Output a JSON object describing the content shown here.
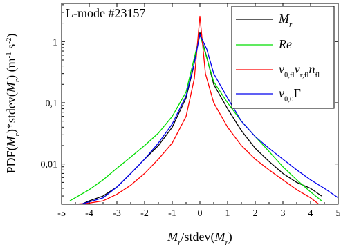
{
  "chart_data": {
    "type": "line",
    "annotation": "L-mode #23157",
    "xlabel": {
      "parts": [
        {
          "t": "M",
          "i": true
        },
        {
          "t": "r",
          "i": true,
          "sub": true
        },
        {
          "t": "/stdev(",
          "i": false
        },
        {
          "t": "M",
          "i": true
        },
        {
          "t": "r",
          "i": true,
          "sub": true
        },
        {
          "t": ")",
          "i": false
        }
      ]
    },
    "ylabel": {
      "parts": [
        {
          "t": "PDF(",
          "i": false
        },
        {
          "t": "M",
          "i": true
        },
        {
          "t": "r",
          "i": true,
          "sub": true
        },
        {
          "t": ")*stdev(",
          "i": false
        },
        {
          "t": "M",
          "i": true
        },
        {
          "t": "r",
          "i": true,
          "sub": true
        },
        {
          "t": ") (m",
          "i": false
        },
        {
          "t": "-1",
          "i": false,
          "sup": true
        },
        {
          "t": " s",
          "i": false
        },
        {
          "t": "-2",
          "i": false,
          "sup": true
        },
        {
          "t": ")",
          "i": false
        }
      ]
    },
    "xlim": [
      -5,
      5
    ],
    "ylim": [
      0.0022,
      4.2
    ],
    "yscale": "log",
    "xticks": [
      -5,
      -4,
      -3,
      -2,
      -1,
      0,
      1,
      2,
      3,
      4,
      5
    ],
    "xtick_labels": [
      "-5",
      "-4",
      "-3",
      "-2",
      "-1",
      "0",
      "1",
      "2",
      "3",
      "4",
      "5"
    ],
    "yticks": [
      0.01,
      0.1,
      1
    ],
    "ytick_labels": [
      "0,01",
      "0,1",
      "1"
    ],
    "legend_position": "top-right",
    "grid": false,
    "series": [
      {
        "name": "M_r",
        "legend": [
          {
            "t": "M",
            "i": true
          },
          {
            "t": "r",
            "i": true,
            "sub": true
          }
        ],
        "color": "#000000",
        "x": [
          -4.5,
          -4.0,
          -3.5,
          -3.0,
          -2.5,
          -2.0,
          -1.5,
          -1.0,
          -0.5,
          -0.25,
          0.0,
          0.25,
          0.5,
          1.0,
          1.5,
          2.0,
          2.5,
          3.0,
          3.5,
          4.0,
          4.4
        ],
        "y": [
          0.002,
          0.0025,
          0.003,
          0.0042,
          0.007,
          0.012,
          0.02,
          0.04,
          0.12,
          0.35,
          1.4,
          0.55,
          0.2,
          0.08,
          0.035,
          0.018,
          0.011,
          0.007,
          0.005,
          0.004,
          0.003
        ]
      },
      {
        "name": "Re",
        "legend": [
          {
            "t": "Re",
            "i": true
          }
        ],
        "color": "#00dd00",
        "x": [
          -4.7,
          -4.0,
          -3.5,
          -3.0,
          -2.5,
          -2.0,
          -1.5,
          -1.0,
          -0.5,
          0.0,
          0.5,
          1.0,
          1.5,
          2.0,
          2.5,
          3.0,
          3.5,
          4.0,
          4.4
        ],
        "y": [
          0.0025,
          0.0038,
          0.0055,
          0.0085,
          0.013,
          0.02,
          0.032,
          0.06,
          0.15,
          1.3,
          0.22,
          0.1,
          0.05,
          0.028,
          0.016,
          0.009,
          0.0055,
          0.0035,
          0.0025
        ]
      },
      {
        "name": "v_θ,fl v_r,fl n_fl",
        "legend": [
          {
            "t": "v",
            "i": true
          },
          {
            "t": "θ,fl",
            "i": false,
            "sub": true
          },
          {
            "t": "v",
            "i": true
          },
          {
            "t": "r,fl",
            "i": false,
            "sub": true
          },
          {
            "t": "n",
            "i": true
          },
          {
            "t": "fl",
            "i": false,
            "sub": true
          }
        ],
        "color": "#ff0000",
        "x": [
          -4.5,
          -4.0,
          -3.5,
          -3.0,
          -2.5,
          -2.0,
          -1.5,
          -1.0,
          -0.5,
          -0.2,
          0.0,
          0.2,
          0.5,
          1.0,
          1.5,
          2.0,
          2.5,
          3.0,
          3.5,
          4.0,
          4.3
        ],
        "y": [
          0.0022,
          0.0023,
          0.0025,
          0.0032,
          0.0045,
          0.007,
          0.012,
          0.022,
          0.06,
          0.25,
          2.6,
          0.3,
          0.1,
          0.04,
          0.02,
          0.012,
          0.008,
          0.0055,
          0.0038,
          0.0028,
          0.0022
        ]
      },
      {
        "name": "v_θ,0 Γ",
        "legend": [
          {
            "t": "v",
            "i": true
          },
          {
            "t": "θ,0",
            "i": false,
            "sub": true
          },
          {
            "t": "Γ",
            "i": false
          }
        ],
        "color": "#0000ee",
        "x": [
          -4.3,
          -4.0,
          -3.5,
          -3.0,
          -2.5,
          -2.0,
          -1.5,
          -1.0,
          -0.5,
          -0.2,
          0.0,
          0.25,
          0.5,
          1.0,
          1.5,
          2.0,
          2.5,
          3.0,
          3.5,
          4.0,
          4.5,
          5.0
        ],
        "y": [
          0.0022,
          0.0024,
          0.0028,
          0.0042,
          0.007,
          0.012,
          0.022,
          0.045,
          0.13,
          0.45,
          1.3,
          0.75,
          0.3,
          0.12,
          0.05,
          0.028,
          0.018,
          0.012,
          0.008,
          0.0055,
          0.004,
          0.0028
        ]
      }
    ]
  }
}
